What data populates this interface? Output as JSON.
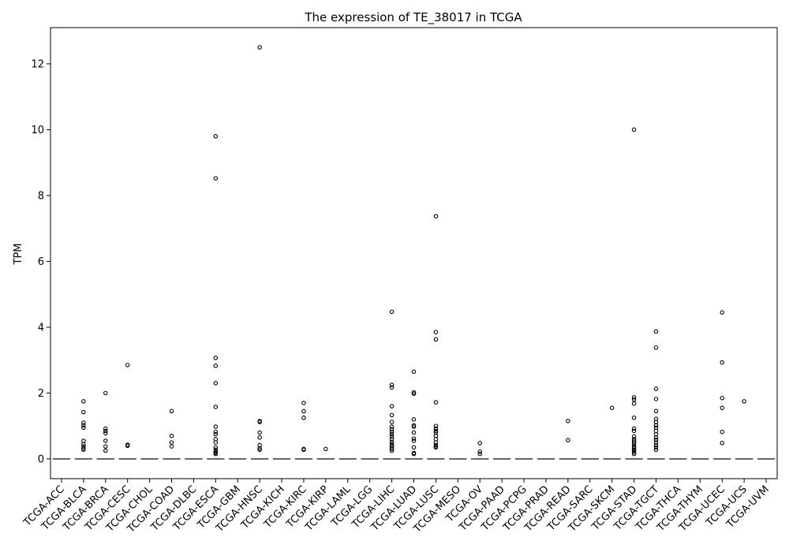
{
  "chart_data": {
    "type": "box",
    "title": "The expression of TE_38017 in TCGA",
    "xlabel": "",
    "ylabel": "TPM",
    "ylim": [
      -0.6,
      13.1
    ],
    "yticks": [
      0,
      2,
      4,
      6,
      8,
      10,
      12
    ],
    "categories": [
      "TCGA-ACC",
      "TCGA-BLCA",
      "TCGA-BRCA",
      "TCGA-CESC",
      "TCGA-CHOL",
      "TCGA-COAD",
      "TCGA-DLBC",
      "TCGA-ESCA",
      "TCGA-GBM",
      "TCGA-HNSC",
      "TCGA-KICH",
      "TCGA-KIRC",
      "TCGA-KIRP",
      "TCGA-LAML",
      "TCGA-LGG",
      "TCGA-LIHC",
      "TCGA-LUAD",
      "TCGA-LUSC",
      "TCGA-MESO",
      "TCGA-OV",
      "TCGA-PAAD",
      "TCGA-PCPG",
      "TCGA-PRAD",
      "TCGA-READ",
      "TCGA-SARC",
      "TCGA-SKCM",
      "TCGA-STAD",
      "TCGA-TGCT",
      "TCGA-THCA",
      "TCGA-THYM",
      "TCGA-UCEC",
      "TCGA-UCS",
      "TCGA-UVM"
    ],
    "medians": [
      0,
      0,
      0,
      0,
      0,
      0,
      0,
      0,
      0,
      0,
      0,
      0,
      0,
      0,
      0,
      0,
      0,
      0,
      0,
      0,
      0,
      0,
      0,
      0,
      0,
      0,
      0,
      0,
      0,
      0,
      0,
      0,
      0
    ],
    "outliers": [
      [],
      [
        1.75,
        1.42,
        1.1,
        1.02,
        0.95,
        0.55,
        0.45,
        0.38,
        0.32,
        0.28
      ],
      [
        2.0,
        0.92,
        0.85,
        0.78,
        0.55,
        0.38,
        0.25
      ],
      [
        2.85,
        0.43,
        0.4
      ],
      [],
      [
        1.45,
        0.7,
        0.5,
        0.38
      ],
      [],
      [
        9.8,
        8.52,
        3.07,
        2.83,
        2.3,
        1.58,
        0.98,
        0.82,
        0.75,
        0.6,
        0.5,
        0.35,
        0.28,
        0.22,
        0.18,
        0.15
      ],
      [],
      [
        12.5,
        1.15,
        1.12,
        0.8,
        0.65,
        0.42,
        0.32,
        0.28
      ],
      [],
      [
        1.7,
        1.45,
        1.25,
        0.3,
        0.28
      ],
      [
        0.3
      ],
      [],
      [],
      [
        4.47,
        2.25,
        2.17,
        1.6,
        1.33,
        1.12,
        0.98,
        0.9,
        0.82,
        0.75,
        0.68,
        0.6,
        0.52,
        0.45,
        0.4,
        0.35,
        0.3,
        0.25
      ],
      [
        2.65,
        2.02,
        1.98,
        1.2,
        1.02,
        0.98,
        0.8,
        0.62,
        0.55,
        0.35,
        0.18,
        0.15
      ],
      [
        7.37,
        3.85,
        3.63,
        1.72,
        1.0,
        0.92,
        0.85,
        0.8,
        0.7,
        0.6,
        0.5,
        0.42,
        0.38,
        0.35
      ],
      [],
      [
        0.48,
        0.22,
        0.15
      ],
      [],
      [],
      [],
      [
        1.15,
        0.57
      ],
      [],
      [
        1.55
      ],
      [
        10.0,
        1.87,
        1.8,
        1.68,
        1.25,
        0.92,
        0.85,
        0.68,
        0.6,
        0.55,
        0.5,
        0.45,
        0.38,
        0.33,
        0.28,
        0.25,
        0.2,
        0.15
      ],
      [
        3.87,
        3.38,
        2.13,
        1.82,
        1.45,
        1.22,
        1.12,
        1.02,
        0.95,
        0.85,
        0.75,
        0.65,
        0.58,
        0.5,
        0.42,
        0.35,
        0.28
      ],
      [],
      [],
      [
        4.45,
        2.93,
        1.85,
        1.55,
        0.82,
        0.48
      ],
      [
        1.75
      ],
      []
    ]
  }
}
